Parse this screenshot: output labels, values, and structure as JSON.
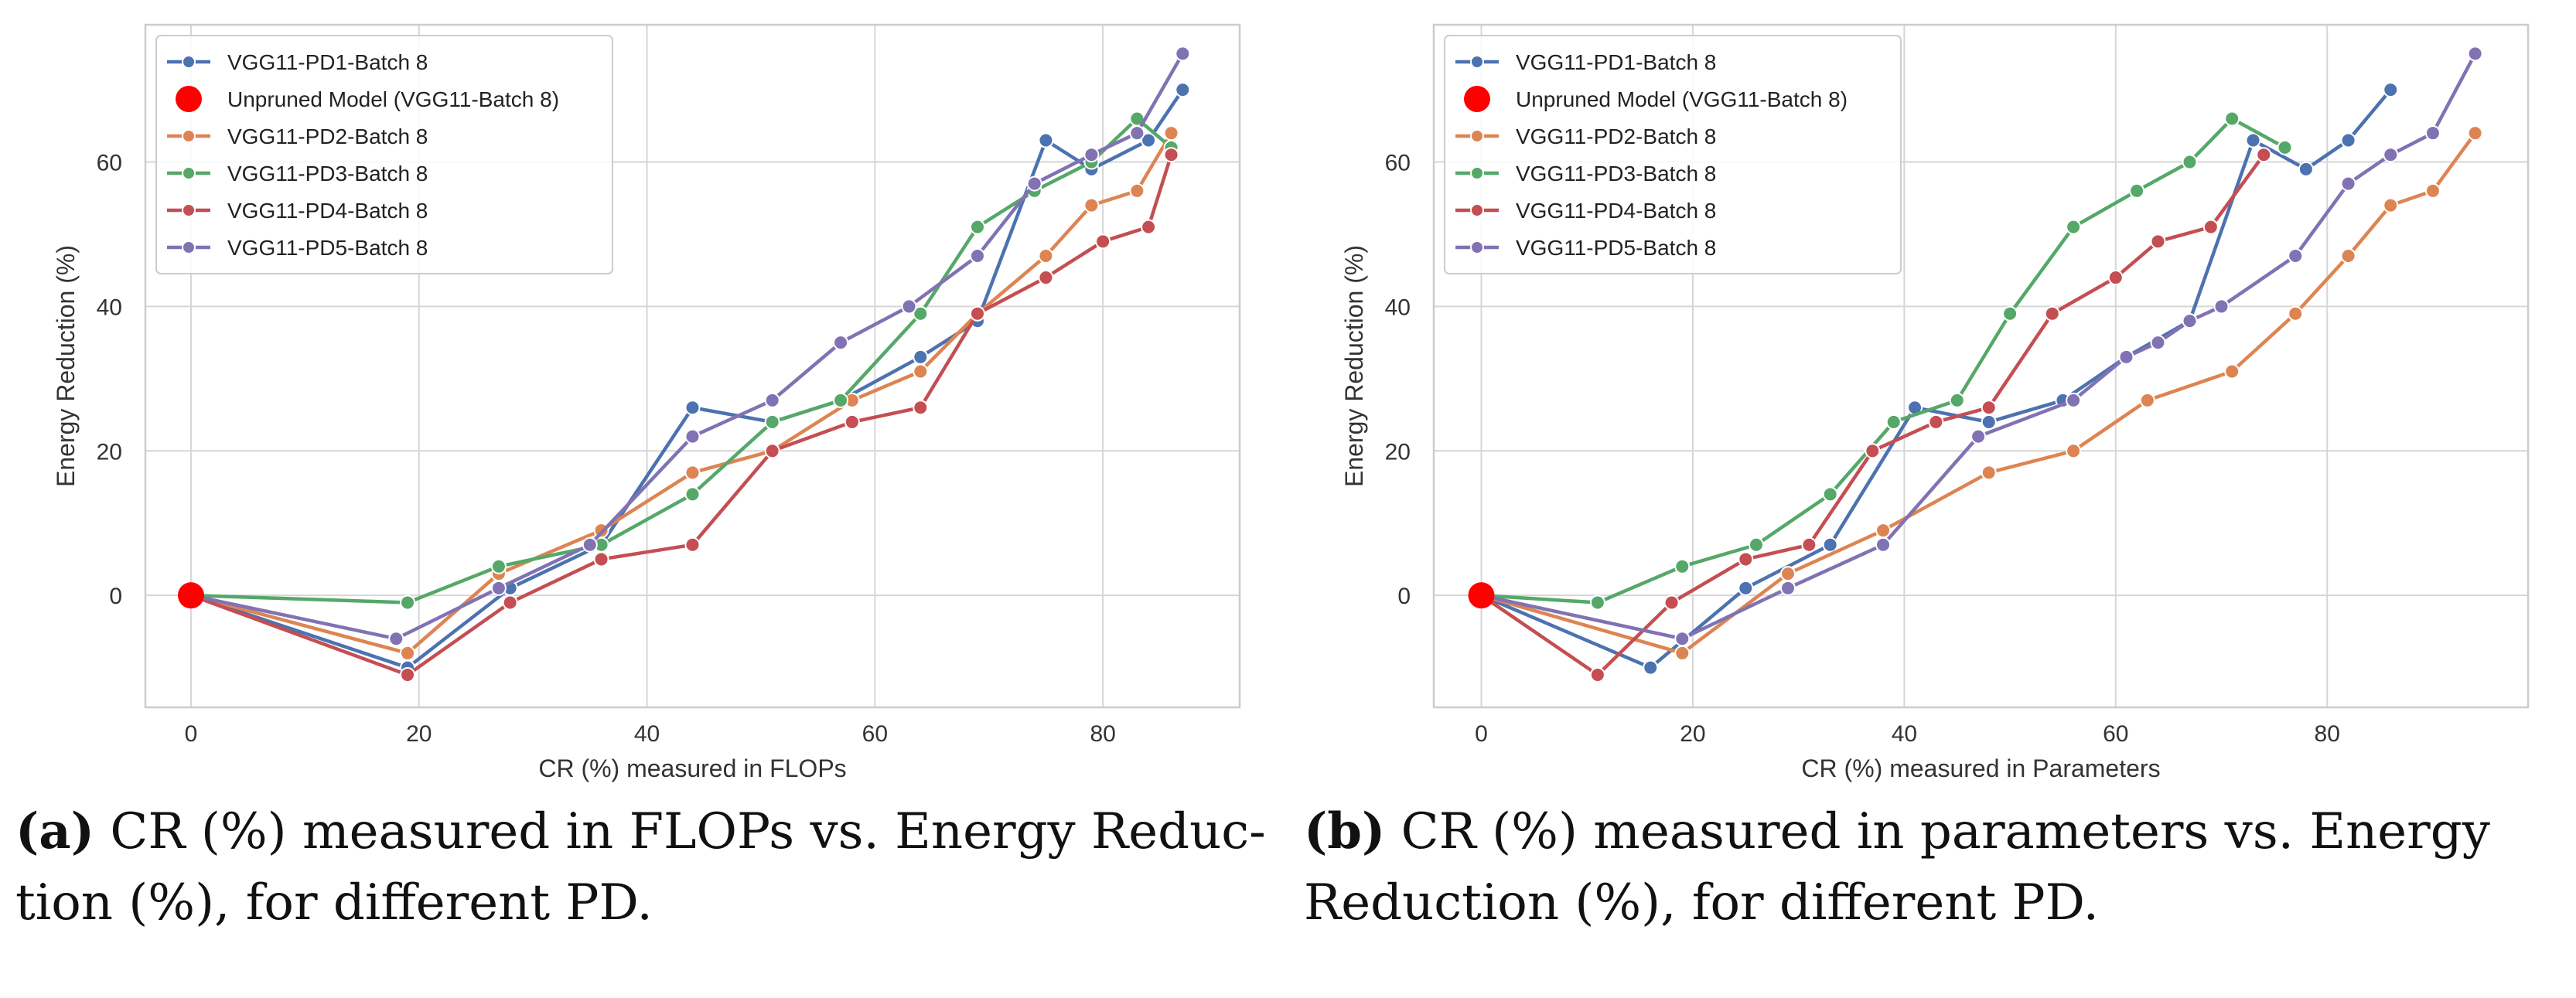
{
  "chart_data": [
    {
      "type": "line",
      "panel_id": "a",
      "xlabel": "CR (%) measured in FLOPs",
      "ylabel": "Energy Reduction (%)",
      "xlim": [
        -4,
        92
      ],
      "ylim": [
        -15.5,
        79
      ],
      "xticks": [
        0,
        20,
        40,
        60,
        80
      ],
      "yticks": [
        0,
        20,
        40,
        60
      ],
      "grid": true,
      "legend_position": "top-left",
      "caption": {
        "label": "(a)",
        "text_lines": [
          "CR (%) measured in FLOPs vs. Energy Reduc-",
          "tion (%), for different PD."
        ]
      },
      "unpruned": {
        "name": "Unpruned Model (VGG11-Batch 8)",
        "x": 0,
        "y": 0,
        "color": "#ff0000"
      },
      "series": [
        {
          "name": "VGG11-PD1-Batch 8",
          "color": "#4c72b0",
          "x": [
            0,
            19,
            28,
            36,
            44,
            51,
            57,
            64,
            69,
            75,
            79,
            84,
            87
          ],
          "y": [
            0,
            -10,
            1,
            7,
            26,
            24,
            27,
            33,
            38,
            63,
            59,
            63,
            70
          ]
        },
        {
          "name": "VGG11-PD2-Batch 8",
          "color": "#dd8452",
          "x": [
            0,
            19,
            27,
            36,
            44,
            51,
            58,
            64,
            69,
            75,
            79,
            83,
            86
          ],
          "y": [
            0,
            -8,
            3,
            9,
            17,
            20,
            27,
            31,
            39,
            47,
            54,
            56,
            64
          ]
        },
        {
          "name": "VGG11-PD3-Batch 8",
          "color": "#55a868",
          "x": [
            0,
            19,
            27,
            36,
            44,
            51,
            57,
            64,
            69,
            74,
            79,
            83,
            86
          ],
          "y": [
            0,
            -1,
            4,
            7,
            14,
            24,
            27,
            39,
            51,
            56,
            60,
            66,
            62
          ]
        },
        {
          "name": "VGG11-PD4-Batch 8",
          "color": "#c44e52",
          "x": [
            0,
            19,
            28,
            36,
            44,
            51,
            58,
            64,
            69,
            75,
            80,
            84,
            86
          ],
          "y": [
            0,
            -11,
            -1,
            5,
            7,
            20,
            24,
            26,
            39,
            44,
            49,
            51,
            61
          ]
        },
        {
          "name": "VGG11-PD5-Batch 8",
          "color": "#8172b3",
          "x": [
            0,
            18,
            27,
            35,
            44,
            51,
            57,
            63,
            69,
            74,
            79,
            83,
            87
          ],
          "y": [
            0,
            -6,
            1,
            7,
            22,
            27,
            35,
            40,
            47,
            57,
            61,
            64,
            75
          ]
        }
      ]
    },
    {
      "type": "line",
      "panel_id": "b",
      "xlabel": "CR (%) measured in Parameters",
      "ylabel": "Energy Reduction (%)",
      "xlim": [
        -4.5,
        99
      ],
      "ylim": [
        -15.5,
        79
      ],
      "xticks": [
        0,
        20,
        40,
        60,
        80
      ],
      "yticks": [
        0,
        20,
        40,
        60
      ],
      "grid": true,
      "legend_position": "top-left",
      "caption": {
        "label": "(b)",
        "text_lines": [
          "CR (%) measured in parameters vs.  Energy",
          "Reduction (%), for different PD."
        ]
      },
      "unpruned": {
        "name": "Unpruned Model (VGG11-Batch 8)",
        "x": 0,
        "y": 0,
        "color": "#ff0000"
      },
      "series": [
        {
          "name": "VGG11-PD1-Batch 8",
          "color": "#4c72b0",
          "x": [
            0,
            16,
            25,
            33,
            41,
            48,
            55,
            61,
            67,
            73,
            78,
            82,
            86
          ],
          "y": [
            0,
            -10,
            1,
            7,
            26,
            24,
            27,
            33,
            38,
            63,
            59,
            63,
            70
          ]
        },
        {
          "name": "VGG11-PD2-Batch 8",
          "color": "#dd8452",
          "x": [
            0,
            19,
            29,
            38,
            48,
            56,
            63,
            71,
            77,
            82,
            86,
            90,
            94
          ],
          "y": [
            0,
            -8,
            3,
            9,
            17,
            20,
            27,
            31,
            39,
            47,
            54,
            56,
            64
          ]
        },
        {
          "name": "VGG11-PD3-Batch 8",
          "color": "#55a868",
          "x": [
            0,
            11,
            19,
            26,
            33,
            39,
            45,
            50,
            56,
            62,
            67,
            71,
            76
          ],
          "y": [
            0,
            -1,
            4,
            7,
            14,
            24,
            27,
            39,
            51,
            56,
            60,
            66,
            62
          ]
        },
        {
          "name": "VGG11-PD4-Batch 8",
          "color": "#c44e52",
          "x": [
            0,
            11,
            18,
            25,
            31,
            37,
            43,
            48,
            54,
            60,
            64,
            69,
            74
          ],
          "y": [
            0,
            -11,
            -1,
            5,
            7,
            20,
            24,
            26,
            39,
            44,
            49,
            51,
            61
          ]
        },
        {
          "name": "VGG11-PD5-Batch 8",
          "color": "#8172b3",
          "x": [
            0,
            19,
            29,
            38,
            47,
            56,
            61,
            64,
            67,
            70,
            77,
            82,
            86,
            90,
            94
          ],
          "y": [
            0,
            -6,
            1,
            7,
            22,
            27,
            33,
            35,
            38,
            40,
            47,
            57,
            61,
            64,
            75
          ]
        }
      ]
    }
  ]
}
